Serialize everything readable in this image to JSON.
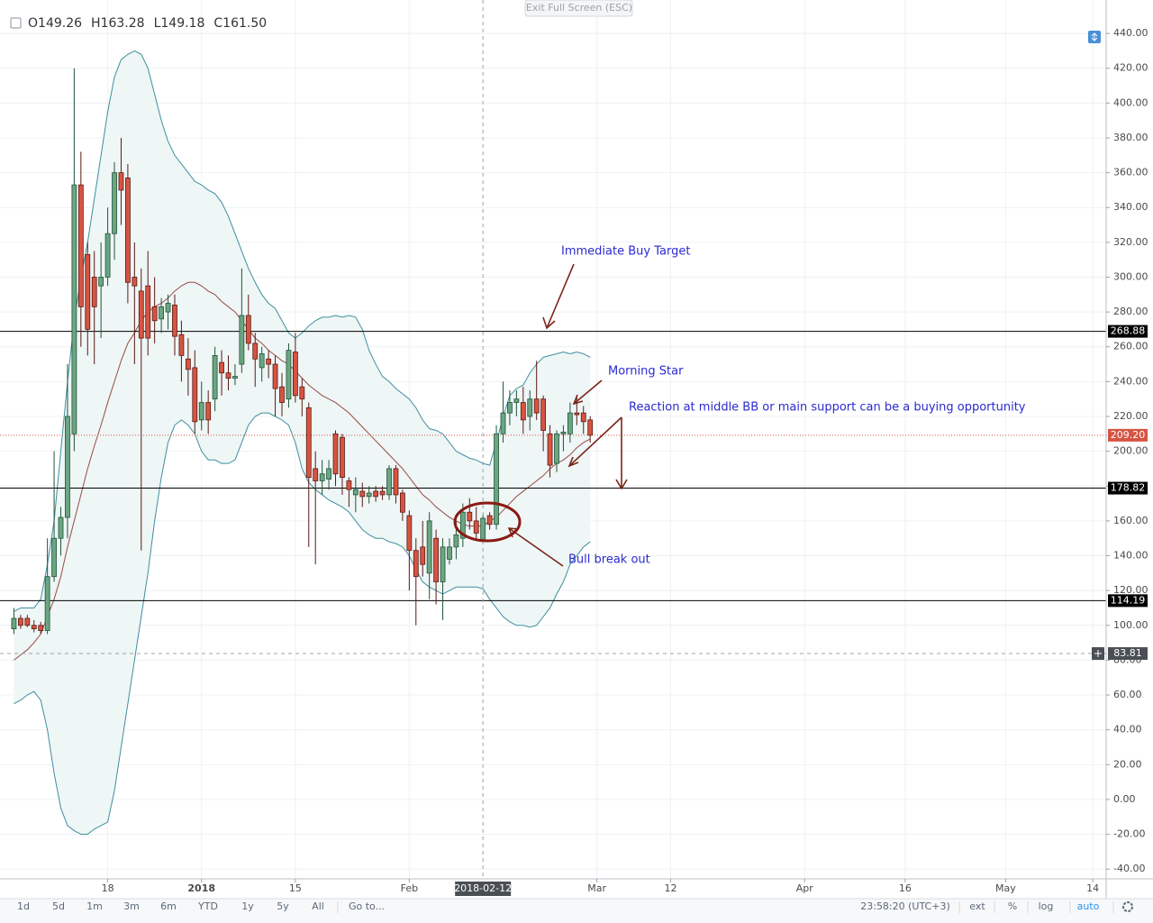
{
  "chart_data": {
    "type": "candlestick",
    "header": {
      "labels": [
        "O",
        "H",
        "L",
        "C"
      ],
      "values": [
        149.26,
        163.28,
        149.18,
        161.5
      ],
      "value_labels": [
        "149.26",
        "163.28",
        "149.18",
        "161.50"
      ]
    },
    "x": [
      "2017-12-04",
      "2017-12-05",
      "2017-12-06",
      "2017-12-07",
      "2017-12-08",
      "2017-12-09",
      "2017-12-10",
      "2017-12-11",
      "2017-12-12",
      "2017-12-13",
      "2017-12-14",
      "2017-12-15",
      "2017-12-16",
      "2017-12-17",
      "2017-12-18",
      "2017-12-19",
      "2017-12-20",
      "2017-12-21",
      "2017-12-22",
      "2017-12-23",
      "2017-12-24",
      "2017-12-25",
      "2017-12-26",
      "2017-12-27",
      "2017-12-28",
      "2017-12-29",
      "2017-12-30",
      "2017-12-31",
      "2018-01-01",
      "2018-01-02",
      "2018-01-03",
      "2018-01-04",
      "2018-01-05",
      "2018-01-06",
      "2018-01-07",
      "2018-01-08",
      "2018-01-09",
      "2018-01-10",
      "2018-01-11",
      "2018-01-12",
      "2018-01-13",
      "2018-01-14",
      "2018-01-15",
      "2018-01-16",
      "2018-01-17",
      "2018-01-18",
      "2018-01-19",
      "2018-01-20",
      "2018-01-21",
      "2018-01-22",
      "2018-01-23",
      "2018-01-24",
      "2018-01-25",
      "2018-01-26",
      "2018-01-27",
      "2018-01-28",
      "2018-01-29",
      "2018-01-30",
      "2018-01-31",
      "2018-02-01",
      "2018-02-02",
      "2018-02-03",
      "2018-02-04",
      "2018-02-05",
      "2018-02-06",
      "2018-02-07",
      "2018-02-08",
      "2018-02-09",
      "2018-02-10",
      "2018-02-11",
      "2018-02-12",
      "2018-02-13",
      "2018-02-14",
      "2018-02-15",
      "2018-02-16",
      "2018-02-17",
      "2018-02-18",
      "2018-02-19",
      "2018-02-20",
      "2018-02-21",
      "2018-02-22",
      "2018-02-23",
      "2018-02-24",
      "2018-02-25",
      "2018-02-26",
      "2018-02-27",
      "2018-02-28"
    ],
    "open": [
      98,
      104,
      104,
      100,
      100,
      97,
      128,
      150,
      162,
      210,
      353,
      313,
      300,
      295,
      300,
      325,
      360,
      357,
      300,
      292,
      295,
      283,
      276,
      280,
      284,
      267,
      253,
      248,
      218,
      228,
      230,
      251,
      245,
      242,
      250,
      278,
      262,
      248,
      253,
      250,
      237,
      230,
      257,
      237,
      225,
      190,
      183,
      184,
      210,
      208,
      183,
      175,
      177,
      174,
      177,
      177,
      175,
      190,
      176,
      163,
      143,
      145,
      130,
      150,
      125,
      138,
      145,
      150,
      165,
      160,
      149.26,
      163,
      158,
      210,
      222,
      228,
      228,
      220,
      230,
      230,
      210,
      193,
      210,
      210,
      222,
      222,
      218
    ],
    "high": [
      110,
      106,
      106,
      103,
      102,
      150,
      200,
      168,
      250,
      420,
      372,
      320,
      315,
      320,
      340,
      366,
      380,
      365,
      320,
      305,
      315,
      300,
      288,
      290,
      290,
      275,
      265,
      258,
      240,
      235,
      260,
      258,
      255,
      250,
      305,
      290,
      268,
      260,
      258,
      255,
      245,
      262,
      268,
      242,
      228,
      200,
      195,
      195,
      212,
      210,
      185,
      185,
      182,
      180,
      180,
      180,
      192,
      192,
      178,
      166,
      150,
      160,
      165,
      155,
      150,
      150,
      160,
      170,
      173,
      168,
      163.28,
      165,
      215,
      240,
      235,
      235,
      237,
      235,
      252,
      232,
      215,
      212,
      215,
      228,
      232,
      226,
      220
    ],
    "low": [
      95,
      98,
      99,
      96,
      95,
      95,
      125,
      140,
      150,
      200,
      260,
      255,
      250,
      265,
      295,
      310,
      330,
      285,
      250,
      143,
      255,
      262,
      268,
      270,
      255,
      240,
      232,
      210,
      212,
      210,
      223,
      232,
      235,
      238,
      245,
      258,
      237,
      240,
      242,
      220,
      220,
      225,
      228,
      220,
      145,
      135,
      175,
      178,
      180,
      175,
      168,
      165,
      168,
      170,
      171,
      172,
      172,
      170,
      160,
      120,
      100,
      128,
      115,
      112,
      103,
      135,
      138,
      145,
      155,
      150,
      149.18,
      155,
      155,
      205,
      215,
      220,
      210,
      212,
      218,
      200,
      185,
      188,
      200,
      205,
      215,
      210,
      205
    ],
    "close": [
      104,
      100,
      100,
      98,
      97,
      128,
      150,
      162,
      220,
      353,
      283,
      270,
      283,
      300,
      325,
      360,
      350,
      297,
      295,
      265,
      265,
      275,
      283,
      285,
      266,
      255,
      247,
      217,
      228,
      218,
      255,
      245,
      242,
      243,
      278,
      262,
      253,
      256,
      250,
      236,
      228,
      258,
      232,
      230,
      185,
      183,
      187,
      190,
      187,
      185,
      178,
      178,
      174,
      176,
      174,
      175,
      190,
      175,
      165,
      143,
      128,
      135,
      160,
      125,
      145,
      145,
      152,
      165,
      160,
      153,
      161.5,
      158,
      210,
      222,
      228,
      230,
      218,
      230,
      222,
      212,
      192,
      210,
      211,
      222,
      221,
      217,
      209.2
    ],
    "up_color": "#6ba583",
    "down_color": "#d75442",
    "upper_band": {
      "color": "#3f8f9f",
      "values": [
        108,
        110,
        110,
        110,
        115,
        135,
        160,
        200,
        240,
        275,
        300,
        320,
        345,
        370,
        395,
        415,
        425,
        428,
        430,
        428,
        420,
        405,
        390,
        378,
        370,
        365,
        360,
        355,
        353,
        350,
        348,
        343,
        335,
        325,
        315,
        305,
        297,
        290,
        285,
        282,
        275,
        268,
        265,
        268,
        272,
        275,
        277,
        277,
        278,
        277,
        278,
        277,
        270,
        258,
        250,
        243,
        240,
        236,
        233,
        230,
        225,
        218,
        213,
        212,
        210,
        205,
        200,
        198,
        196,
        195,
        193,
        192,
        205,
        220,
        232,
        236,
        238,
        245,
        250,
        254,
        255,
        256,
        257,
        256,
        257,
        256,
        254
      ]
    },
    "middle_band": {
      "color": "#9a4a44",
      "values": [
        80,
        83,
        86,
        90,
        95,
        105,
        115,
        128,
        145,
        160,
        175,
        190,
        203,
        215,
        228,
        240,
        252,
        262,
        268,
        275,
        280,
        283,
        285,
        288,
        292,
        295,
        297,
        297,
        295,
        292,
        290,
        286,
        283,
        280,
        275,
        270,
        265,
        262,
        258,
        255,
        252,
        250,
        246,
        242,
        238,
        235,
        232,
        230,
        228,
        225,
        222,
        218,
        214,
        210,
        206,
        202,
        198,
        194,
        190,
        185,
        180,
        175,
        172,
        168,
        165,
        162,
        160,
        158,
        157,
        157,
        157,
        160,
        162,
        166,
        170,
        174,
        177,
        180,
        183,
        186,
        190,
        193,
        195,
        198,
        202,
        205,
        207
      ]
    },
    "lower_band": {
      "color": "#3f8f9f",
      "values": [
        55,
        57,
        60,
        62,
        57,
        40,
        15,
        -5,
        -15,
        -18,
        -20,
        -20,
        -17,
        -15,
        -13,
        5,
        30,
        55,
        80,
        105,
        130,
        160,
        185,
        205,
        215,
        218,
        215,
        210,
        200,
        195,
        195,
        193,
        193,
        195,
        205,
        215,
        220,
        222,
        222,
        220,
        218,
        215,
        205,
        190,
        182,
        178,
        175,
        172,
        170,
        168,
        165,
        160,
        155,
        152,
        150,
        150,
        148,
        147,
        145,
        140,
        132,
        125,
        122,
        120,
        118,
        120,
        122,
        122,
        122,
        122,
        121,
        115,
        110,
        105,
        102,
        100,
        100,
        99,
        100,
        105,
        110,
        118,
        125,
        135,
        140,
        145,
        148
      ]
    },
    "band_fill": "#eef6f6",
    "levels": [
      268.88,
      178.82,
      114.19
    ],
    "last_price": {
      "value": 209.2,
      "label": "209.20"
    },
    "crosshair": {
      "date": "2018-02-12",
      "price": 83.81
    },
    "xlim": [
      "2017-12-03",
      "2018-05-16"
    ],
    "xticks": [
      {
        "value": "2017-12-18",
        "label": "18"
      },
      {
        "value": "2018-01-01",
        "label": "2018"
      },
      {
        "value": "2018-01-15",
        "label": "15"
      },
      {
        "value": "2018-02-01",
        "label": "Feb"
      },
      {
        "value": "2018-03-01",
        "label": "Mar"
      },
      {
        "value": "2018-03-12",
        "label": "12"
      },
      {
        "value": "2018-04-01",
        "label": "Apr"
      },
      {
        "value": "2018-04-16",
        "label": "16"
      },
      {
        "value": "2018-05-01",
        "label": "May"
      },
      {
        "value": "2018-05-14",
        "label": "14"
      }
    ],
    "ylim": [
      -45.6,
      459.2
    ],
    "yticks": [
      {
        "value": -40,
        "label": "-40.00"
      },
      {
        "value": -20,
        "label": "-20.00"
      },
      {
        "value": 0,
        "label": "0.00"
      },
      {
        "value": 20,
        "label": "20.00"
      },
      {
        "value": 40,
        "label": "40.00"
      },
      {
        "value": 60,
        "label": "60.00"
      },
      {
        "value": 80,
        "label": "80.00"
      },
      {
        "value": 100,
        "label": "100.00"
      },
      {
        "value": 120,
        "label": "120.00"
      },
      {
        "value": 140,
        "label": "140.00"
      },
      {
        "value": 160,
        "label": "160.00"
      },
      {
        "value": 180,
        "label": "180.00"
      },
      {
        "value": 200,
        "label": "200.00"
      },
      {
        "value": 220,
        "label": "220.00"
      },
      {
        "value": 240,
        "label": "240.00"
      },
      {
        "value": 260,
        "label": "260.00"
      },
      {
        "value": 280,
        "label": "280.00"
      },
      {
        "value": 300,
        "label": "300.00"
      },
      {
        "value": 320,
        "label": "320.00"
      },
      {
        "value": 340,
        "label": "340.00"
      },
      {
        "value": 360,
        "label": "360.00"
      },
      {
        "value": 380,
        "label": "380.00"
      },
      {
        "value": 400,
        "label": "400.00"
      },
      {
        "value": 420,
        "label": "420.00"
      },
      {
        "value": 440,
        "label": "440.00"
      }
    ],
    "grid": true,
    "annotations": [
      "Immediate Buy Target",
      "Morning Star",
      "Reaction at middle BB or main support can be a buying opportunity",
      "Bull break out"
    ]
  },
  "exit_button": "Exit Full Screen (ESC)",
  "toolbar": {
    "ranges": [
      "1d",
      "5d",
      "1m",
      "3m",
      "6m",
      "YTD",
      "1y",
      "5y",
      "All",
      "Go to..."
    ],
    "clock": "23:58:20 (UTC+3)",
    "options": [
      "ext",
      "%",
      "log",
      "auto"
    ]
  }
}
